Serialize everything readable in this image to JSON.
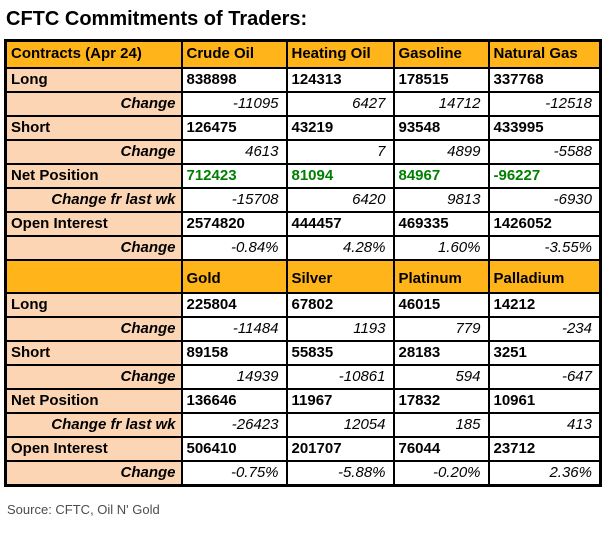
{
  "title": "CFTC Commitments of Traders:",
  "source_note": "Source: CFTC, Oil N' Gold",
  "colors": {
    "header_bg": "#FFB419",
    "label_bg": "#FCD5B4",
    "net_position_green": "#008000",
    "border": "#000000",
    "source_text": "#4D4D4D"
  },
  "chart_data": {
    "type": "table",
    "title": "CFTC Commitments of Traders:",
    "report_date": "Apr 24",
    "sections": [
      {
        "header": [
          "Contracts (Apr 24)",
          "Crude Oil",
          "Heating Oil",
          "Gasoline",
          "Natural Gas"
        ],
        "rows": [
          {
            "label": "Long",
            "style": "bold",
            "values": [
              "838898",
              "124313",
              "178515",
              "337768"
            ]
          },
          {
            "label": "Change",
            "style": "change",
            "values": [
              "-11095",
              "6427",
              "14712",
              "-12518"
            ]
          },
          {
            "label": "Short",
            "style": "bold",
            "values": [
              "126475",
              "43219",
              "93548",
              "433995"
            ]
          },
          {
            "label": "Change",
            "style": "change",
            "values": [
              "4613",
              "7",
              "4899",
              "-5588"
            ]
          },
          {
            "label": "Net Position",
            "style": "net",
            "values": [
              "712423",
              "81094",
              "84967",
              "-96227"
            ]
          },
          {
            "label": "Change fr last wk",
            "style": "change",
            "values": [
              "-15708",
              "6420",
              "9813",
              "-6930"
            ]
          },
          {
            "label": "Open Interest",
            "style": "bold",
            "values": [
              "2574820",
              "444457",
              "469335",
              "1426052"
            ]
          },
          {
            "label": "Change",
            "style": "change",
            "values": [
              "-0.84%",
              "4.28%",
              "1.60%",
              "-3.55%"
            ]
          }
        ]
      },
      {
        "header": [
          "",
          "Gold",
          "Silver",
          "Platinum",
          "Palladium"
        ],
        "rows": [
          {
            "label": "Long",
            "style": "bold",
            "values": [
              "225804",
              "67802",
              "46015",
              "14212"
            ]
          },
          {
            "label": "Change",
            "style": "change",
            "values": [
              "-11484",
              "1193",
              "779",
              "-234"
            ]
          },
          {
            "label": "Short",
            "style": "bold",
            "values": [
              "89158",
              "55835",
              "28183",
              "3251"
            ]
          },
          {
            "label": "Change",
            "style": "change",
            "values": [
              "14939",
              "-10861",
              "594",
              "-647"
            ]
          },
          {
            "label": "Net Position",
            "style": "bold",
            "values": [
              "136646",
              "11967",
              "17832",
              "10961"
            ]
          },
          {
            "label": "Change fr last wk",
            "style": "change",
            "values": [
              "-26423",
              "12054",
              "185",
              "413"
            ]
          },
          {
            "label": "Open Interest",
            "style": "bold",
            "values": [
              "506410",
              "201707",
              "76044",
              "23712"
            ]
          },
          {
            "label": "Change",
            "style": "change",
            "values": [
              "-0.75%",
              "-5.88%",
              "-0.20%",
              "2.36%"
            ]
          }
        ]
      }
    ]
  }
}
